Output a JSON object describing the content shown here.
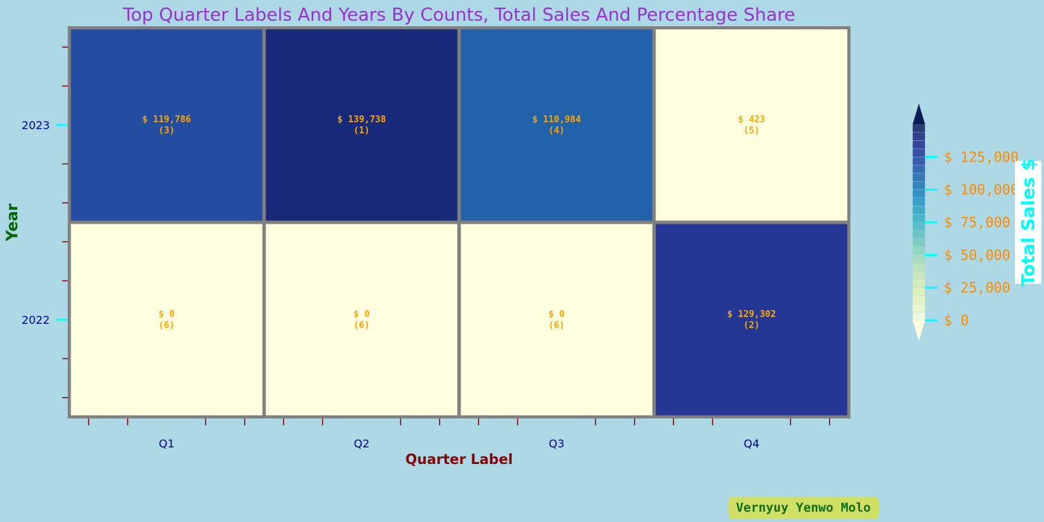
{
  "chart_data": {
    "type": "heatmap",
    "title": "Top Quarter Labels And Years By Counts, Total Sales And Percentage Share",
    "xlabel": "Quarter Label",
    "ylabel": "Year",
    "x_categories": [
      "Q1",
      "Q2",
      "Q3",
      "Q4"
    ],
    "y_categories": [
      "2023",
      "2022"
    ],
    "cells": [
      {
        "year": "2023",
        "quarter": "Q1",
        "value": 119786,
        "label": "$ 119,786",
        "rank_label": "(3)"
      },
      {
        "year": "2023",
        "quarter": "Q2",
        "value": 139738,
        "label": "$ 139,738",
        "rank_label": "(1)"
      },
      {
        "year": "2023",
        "quarter": "Q3",
        "value": 110984,
        "label": "$ 110,984",
        "rank_label": "(4)"
      },
      {
        "year": "2023",
        "quarter": "Q4",
        "value": 423,
        "label": "$ 423",
        "rank_label": "(5)"
      },
      {
        "year": "2022",
        "quarter": "Q1",
        "value": 0,
        "label": "$ 0",
        "rank_label": "(6)"
      },
      {
        "year": "2022",
        "quarter": "Q2",
        "value": 0,
        "label": "$ 0",
        "rank_label": "(6)"
      },
      {
        "year": "2022",
        "quarter": "Q3",
        "value": 0,
        "label": "$ 0",
        "rank_label": "(6)"
      },
      {
        "year": "2022",
        "quarter": "Q4",
        "value": 129302,
        "label": "$ 129,302",
        "rank_label": "(2)"
      }
    ],
    "colorbar": {
      "label": "Total Sales $",
      "ticks": [
        0,
        25000,
        50000,
        75000,
        100000,
        125000
      ],
      "tick_labels": [
        "$ 0",
        "$ 25,000",
        "$ 50,000",
        "$ 75,000",
        "$ 100,000",
        "$ 125,000"
      ],
      "range": [
        0,
        150000
      ],
      "extend": "both"
    },
    "colors": {
      "title": "#9932cc",
      "xlabel": "#8b0000",
      "ylabel": "#006400",
      "tick_labels": "#00008b",
      "cell_text": "#ffa500",
      "cell_border": "#808080",
      "colorbar_label": "#00ffff",
      "colorbar_ticks": "#00ffff",
      "colorbar_tick_labels": "#ff8c00",
      "colormap_low": "#ffffe0",
      "colormap_high": "#081d58"
    }
  },
  "watermark": "Vernyuy Yenwo Molo"
}
